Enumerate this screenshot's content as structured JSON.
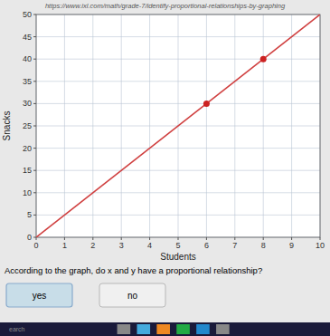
{
  "chart_data": {
    "type": "line",
    "title": "https://www.ixl.com/math/grade-7/identify-proportional-relationships-by-graphing",
    "x_label": "Students",
    "y_label": "Snacks",
    "xlim": [
      0,
      10
    ],
    "ylim": [
      0,
      50
    ],
    "xticks": [
      0,
      1,
      2,
      3,
      4,
      5,
      6,
      7,
      8,
      9,
      10
    ],
    "yticks": [
      0,
      5,
      10,
      15,
      20,
      25,
      30,
      35,
      40,
      45,
      50
    ],
    "grid": true,
    "series": [
      {
        "type": "line",
        "color": "#d04040",
        "x": [
          0,
          10
        ],
        "values": [
          0,
          50
        ]
      },
      {
        "type": "scatter",
        "color": "#cc2222",
        "x": [
          6,
          8
        ],
        "values": [
          30,
          40
        ]
      }
    ],
    "annotations": [
      "According to the graph, do x and y have a proportional relationship?",
      "yes",
      "no",
      "earch"
    ]
  }
}
